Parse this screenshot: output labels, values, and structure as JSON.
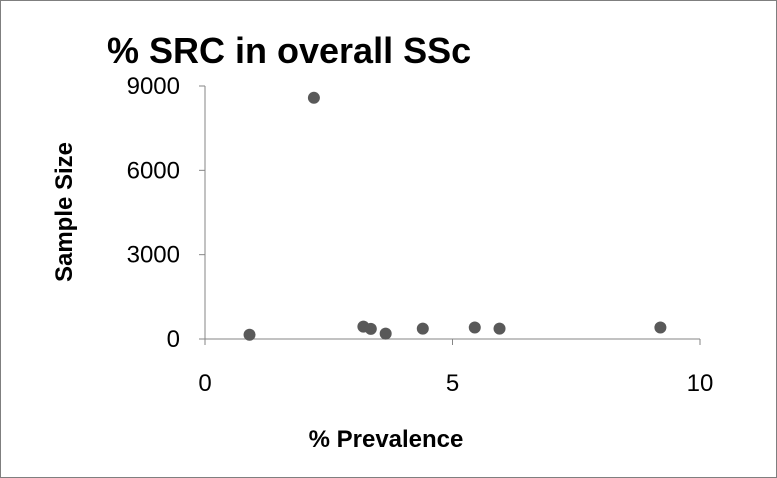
{
  "chart_data": {
    "type": "scatter",
    "title": "% SRC in overall SSc",
    "xlabel": "% Prevalence",
    "ylabel": "Sample Size",
    "xlim": [
      0,
      10
    ],
    "ylim": [
      0,
      9000
    ],
    "xticks": [
      0,
      5,
      10
    ],
    "yticks": [
      0,
      3000,
      6000,
      9000
    ],
    "grid": false,
    "legend": "none",
    "marker_color": "#595959",
    "series": [
      {
        "points": [
          {
            "x": 0.9,
            "y": 150
          },
          {
            "x": 2.2,
            "y": 8580
          },
          {
            "x": 3.2,
            "y": 440
          },
          {
            "x": 3.35,
            "y": 360
          },
          {
            "x": 3.65,
            "y": 190
          },
          {
            "x": 4.4,
            "y": 370
          },
          {
            "x": 5.45,
            "y": 410
          },
          {
            "x": 5.95,
            "y": 370
          },
          {
            "x": 9.2,
            "y": 410
          }
        ]
      }
    ]
  }
}
